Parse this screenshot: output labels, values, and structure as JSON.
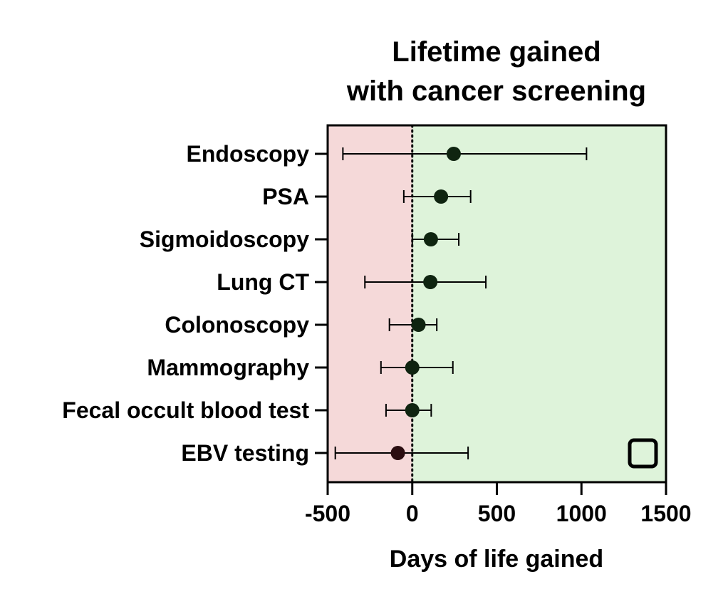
{
  "chart_data": {
    "type": "forest",
    "title_lines": [
      "Lifetime gained",
      "with cancer screening"
    ],
    "xlabel": "Days of life gained",
    "xlim": [
      -500,
      1500
    ],
    "xticks": [
      "-500",
      "0",
      "500",
      "1000",
      "1500"
    ],
    "reference_line_x": 0,
    "regions": [
      {
        "from": -500,
        "to": 0,
        "color": "#f5d9d9"
      },
      {
        "from": 0,
        "to": 1500,
        "color": "#def3da"
      }
    ],
    "series": [
      {
        "label": "Endoscopy",
        "estimate": 245,
        "low": -410,
        "high": 1030
      },
      {
        "label": "PSA",
        "estimate": 170,
        "low": -50,
        "high": 345
      },
      {
        "label": "Sigmoidoscopy",
        "estimate": 110,
        "low": 0,
        "high": 275
      },
      {
        "label": "Lung CT",
        "estimate": 107,
        "low": -280,
        "high": 435
      },
      {
        "label": "Colonoscopy",
        "estimate": 37,
        "low": -135,
        "high": 145
      },
      {
        "label": "Mammography",
        "estimate": 0,
        "low": -185,
        "high": 240
      },
      {
        "label": "Fecal occult blood test",
        "estimate": 0,
        "low": -155,
        "high": 112
      },
      {
        "label": "EBV testing",
        "estimate": -85,
        "low": -455,
        "high": 330
      }
    ],
    "marker_color": "#0f2410",
    "marker_color_negative": "#2a0d10"
  }
}
